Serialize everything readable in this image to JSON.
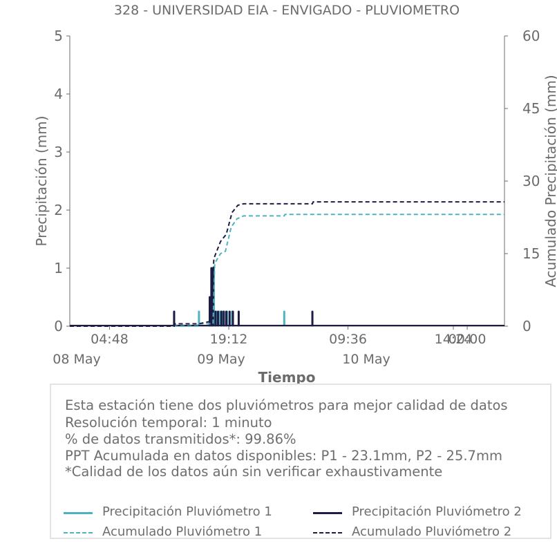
{
  "chart_data": {
    "type": "line",
    "title": "328 - UNIVERSIDAD EIA - ENVIGADO - PLUVIOMETRO",
    "xlabel": "Tiempo",
    "ylabel_left": "Precipitación (mm)",
    "ylabel_right": "Acumulado Precipitación (mm)",
    "ylim_left": [
      0,
      5
    ],
    "ylim_right": [
      0,
      60
    ],
    "yticks_left": [
      "0",
      "1",
      "2",
      "3",
      "4",
      "5"
    ],
    "yticks_right": [
      "0",
      "15",
      "30",
      "45",
      "60"
    ],
    "x_range_hours": [
      0,
      52.5
    ],
    "xticks": [
      {
        "hour": 4.8,
        "label": "04:48"
      },
      {
        "hour": 19.2,
        "label": "19:12"
      },
      {
        "hour": 33.6,
        "label": "09:36"
      },
      {
        "hour": 48,
        "label": "00:00"
      },
      {
        "hour": 62.4,
        "label": "14:24"
      }
    ],
    "date_labels": [
      {
        "hour": 0,
        "label": "08 May"
      },
      {
        "hour": 24,
        "label": "09 May"
      },
      {
        "hour": 48,
        "label": "10 May"
      }
    ],
    "grid": false,
    "series": [
      {
        "name": "Precipitación Pluviómetro 1",
        "axis": "left",
        "style": "solid",
        "color": "#4fb3bf",
        "points": [
          [
            12.6,
            0.25
          ],
          [
            15.6,
            0.25
          ],
          [
            17.2,
            0.5
          ],
          [
            17.4,
            1.0
          ],
          [
            17.7,
            0.25
          ],
          [
            18.1,
            0.25
          ],
          [
            18.5,
            0.25
          ],
          [
            19.0,
            0.25
          ],
          [
            19.6,
            0.25
          ],
          [
            25.9,
            0.25
          ]
        ]
      },
      {
        "name": "Precipitación Pluviómetro 2",
        "axis": "left",
        "style": "solid",
        "color": "#1c1c45",
        "points": [
          [
            12.6,
            0.25
          ],
          [
            16.9,
            0.5
          ],
          [
            17.1,
            1.0
          ],
          [
            17.3,
            1.0
          ],
          [
            17.6,
            0.25
          ],
          [
            17.9,
            0.25
          ],
          [
            18.3,
            0.25
          ],
          [
            18.6,
            0.25
          ],
          [
            18.9,
            0.25
          ],
          [
            19.3,
            0.25
          ],
          [
            19.7,
            0.25
          ],
          [
            20.4,
            0.25
          ],
          [
            29.3,
            0.25
          ]
        ]
      },
      {
        "name": "Acumulado Pluviómetro 1",
        "axis": "right",
        "style": "dashed",
        "color": "#4fb3bf",
        "points": [
          [
            0,
            0
          ],
          [
            15.6,
            0
          ],
          [
            15.7,
            0.5
          ],
          [
            17.3,
            0.5
          ],
          [
            17.5,
            13.0
          ],
          [
            18.2,
            15.0
          ],
          [
            18.8,
            15.5
          ],
          [
            19.5,
            20.5
          ],
          [
            20.2,
            22.2
          ],
          [
            21.0,
            22.8
          ],
          [
            25.9,
            22.8
          ],
          [
            26.0,
            23.1
          ],
          [
            52.5,
            23.1
          ]
        ]
      },
      {
        "name": "Acumulado Pluviómetro 2",
        "axis": "right",
        "style": "dashed",
        "color": "#1c1c45",
        "points": [
          [
            0,
            0
          ],
          [
            12.6,
            0
          ],
          [
            12.7,
            0.5
          ],
          [
            15.6,
            0.5
          ],
          [
            17.0,
            1.0
          ],
          [
            17.4,
            14.0
          ],
          [
            18.2,
            17.5
          ],
          [
            18.9,
            19.0
          ],
          [
            19.6,
            23.5
          ],
          [
            20.3,
            25.0
          ],
          [
            21.0,
            25.3
          ],
          [
            29.3,
            25.3
          ],
          [
            29.4,
            25.7
          ],
          [
            52.5,
            25.7
          ]
        ]
      }
    ]
  },
  "info": {
    "line1": "Esta estación tiene dos pluviómetros para mejor calidad de datos",
    "line2": "Resolución temporal: 1 minuto",
    "line3": "% de datos transmitidos*: 99.86%",
    "line4": "PPT Acumulada en datos disponibles: P1 - 23.1mm, P2 - 25.7mm",
    "line5": "*Calidad de los datos aún sin verificar exhaustivamente"
  },
  "legend": {
    "p1_precip": "Precipitación Pluviómetro 1",
    "p2_precip": "Precipitación Pluviómetro 2",
    "p1_acum": "Acumulado Pluviómetro 1",
    "p2_acum": "Acumulado Pluviómetro 2",
    "color_p1": "#4fb3bf",
    "color_p2": "#1c1c45"
  }
}
